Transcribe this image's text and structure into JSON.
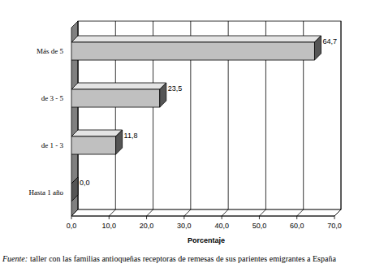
{
  "chart_data": {
    "type": "bar",
    "orientation": "horizontal",
    "categories": [
      "Más de 5",
      "de 3 - 5",
      "de 1 - 3",
      "Hasta 1 año"
    ],
    "values": [
      64.7,
      23.5,
      11.8,
      0.0
    ],
    "value_labels": [
      "64,7",
      "23,5",
      "11,8",
      "0,0"
    ],
    "data_labels": true,
    "color": "#c0c0c0",
    "xlim": [
      0,
      70
    ],
    "xticks": [
      {
        "value": 0,
        "label": "0,0"
      },
      {
        "value": 10,
        "label": "10,0"
      },
      {
        "value": 20,
        "label": "20,0"
      },
      {
        "value": 30,
        "label": "30,0"
      },
      {
        "value": 40,
        "label": "40,0"
      },
      {
        "value": 50,
        "label": "50,0"
      },
      {
        "value": 60,
        "label": "60,0"
      },
      {
        "value": 70,
        "label": "70,0"
      }
    ],
    "x_label": "Porcentaje",
    "grid": true,
    "source_label": "Fuente:",
    "source": "taller con las familias antioqueñas receptoras de remesas de sus parientes emigrantes a España"
  }
}
